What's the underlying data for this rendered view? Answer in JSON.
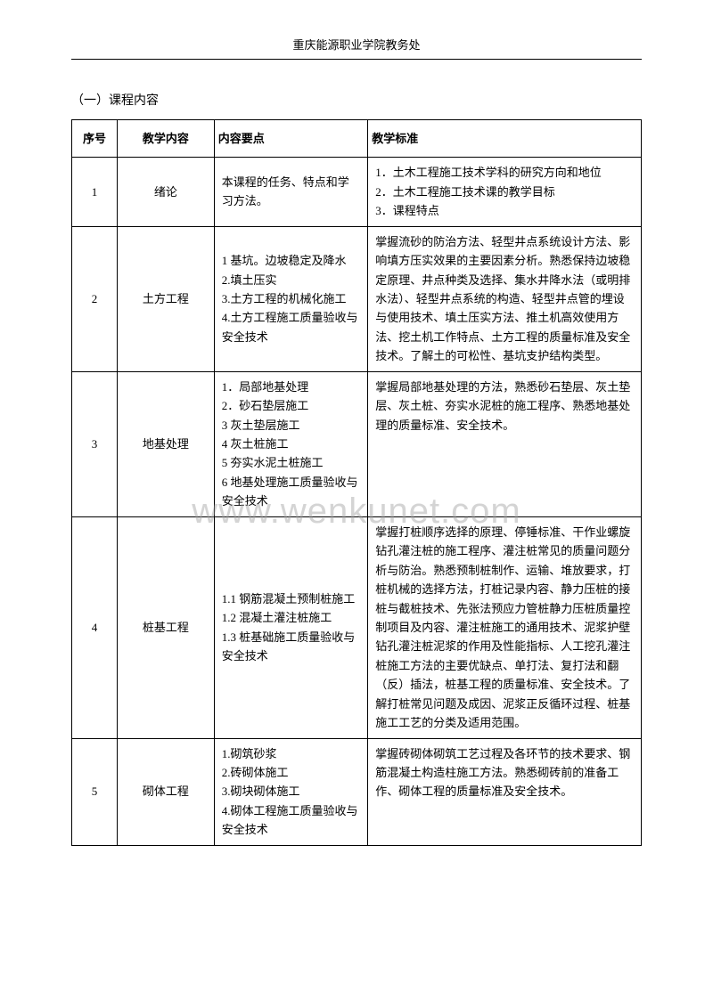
{
  "header": "重庆能源职业学院教务处",
  "section_title": "（一）课程内容",
  "watermark": "www.wenkunet.com",
  "table": {
    "columns": [
      "序号",
      "教学内容",
      "内容要点",
      "教学标准"
    ],
    "rows": [
      {
        "seq": "1",
        "topic": "绪论",
        "points": "本课程的任务、特点和学习方法。",
        "standard": "1．土木工程施工技术学科的研究方向和地位\n2．土木工程施工技术课的教学目标\n3．课程特点"
      },
      {
        "seq": "2",
        "topic": "土方工程",
        "points": "1 基坑。边坡稳定及降水\n2.填土压实\n3.土方工程的机械化施工\n4.土方工程施工质量验收与安全技术",
        "standard": "掌握流砂的防治方法、轻型井点系统设计方法、影响填方压实效果的主要因素分析。熟悉保持边坡稳定原理、井点种类及选择、集水井降水法（或明排水法）、轻型井点系统的构造、轻型井点管的埋设与使用技术、填土压实方法、推土机高效使用方法、挖土机工作特点、土方工程的质量标准及安全技术。了解土的可松性、基坑支护结构类型。"
      },
      {
        "seq": "3",
        "topic": "地基处理",
        "points": "1．局部地基处理\n2．砂石垫层施工\n 3 灰土垫层施工\n 4 灰土桩施工\n5 夯实水泥土桩施工\n6 地基处理施工质量验收与安全技术",
        "standard": "掌握局部地基处理的方法，熟悉砂石垫层、灰土垫层、灰土桩、夯实水泥桩的施工程序、熟悉地基处理的质量标准、安全技术。"
      },
      {
        "seq": "4",
        "topic": "桩基工程",
        "points": "1.1 钢筋混凝土预制桩施工\n1.2 混凝土灌注桩施工\n1.3 桩基础施工质量验收与安全技术",
        "standard": "掌握打桩顺序选择的原理、停锤标准、干作业螺旋钻孔灌注桩的施工程序、灌注桩常见的质量问题分析与防治。熟悉预制桩制作、运输、堆放要求，打桩机械的选择方法，打桩记录内容、静力压桩的接桩与截桩技术、先张法预应力管桩静力压桩质量控制项目及内容、灌注桩施工的通用技术、泥浆护壁钻孔灌注桩泥浆的作用及性能指标、人工挖孔灌注桩施工方法的主要优缺点、单打法、复打法和翻（反）插法，桩基工程的质量标准、安全技术。了解打桩常见问题及成因、泥浆正反循环过程、桩基施工工艺的分类及适用范围。"
      },
      {
        "seq": "5",
        "topic": "砌体工程",
        "points": "1.砌筑砂浆\n2.砖砌体施工\n3.砌块砌体施工\n4.砌体工程施工质量验收与安全技术",
        "standard": "掌握砖砌体砌筑工艺过程及各环节的技术要求、钢筋混凝土构造柱施工方法。熟悉砌砖前的准备工作、砌体工程的质量标准及安全技术。"
      }
    ]
  }
}
